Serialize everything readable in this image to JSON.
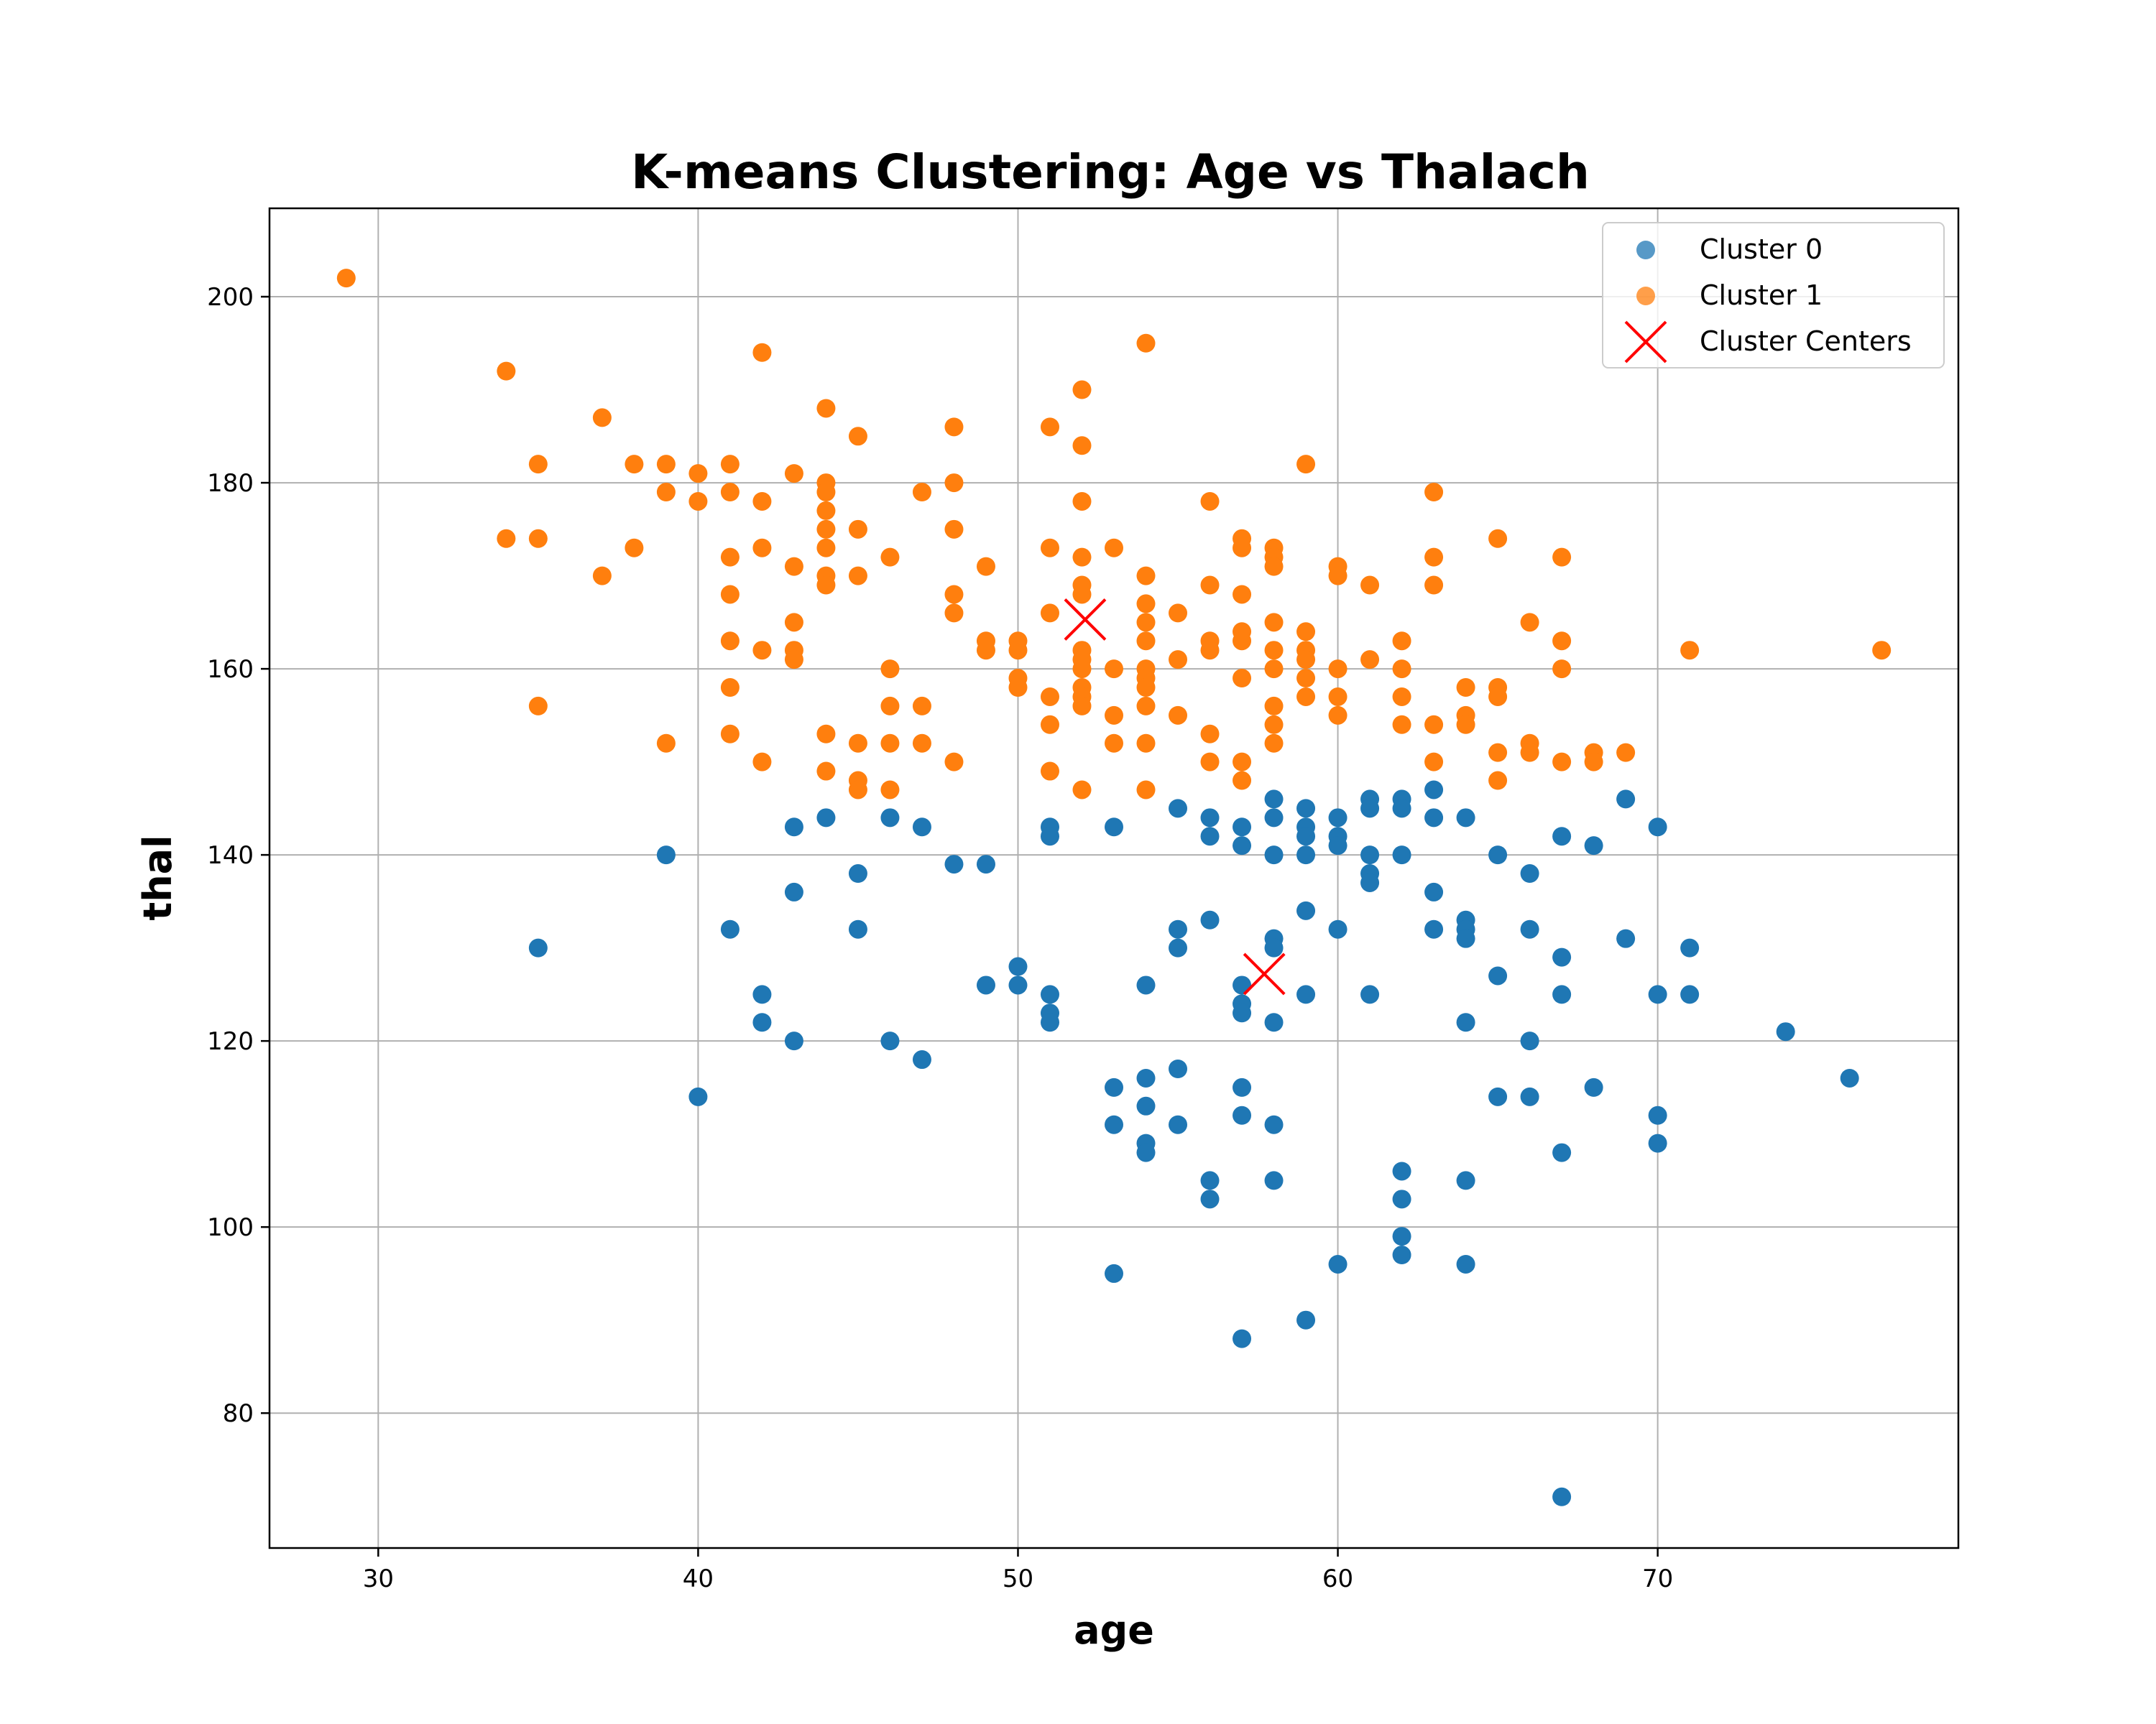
{
  "chart_data": {
    "type": "scatter",
    "title": "K-means Clustering: Age vs Thalach",
    "xlabel": "age",
    "ylabel": "thal",
    "xlim": [
      26.6,
      79.4
    ],
    "ylim": [
      65.5,
      209.5
    ],
    "xticks": [
      "30",
      "40",
      "50",
      "60",
      "70"
    ],
    "yticks": [
      "80",
      "100",
      "120",
      "140",
      "160",
      "180",
      "200"
    ],
    "grid": true,
    "legend_position": "top-right",
    "colors": {
      "cluster0": "#1f77b4",
      "cluster1": "#ff7f0e",
      "centers": "#ff0000"
    },
    "series": [
      {
        "name": "Cluster 0",
        "points": [
          [
            35,
            130
          ],
          [
            39,
            140
          ],
          [
            40,
            114
          ],
          [
            41,
            132
          ],
          [
            42,
            125
          ],
          [
            42,
            122
          ],
          [
            43,
            143
          ],
          [
            43,
            136
          ],
          [
            43,
            120
          ],
          [
            44,
            144
          ],
          [
            45,
            138
          ],
          [
            45,
            132
          ],
          [
            46,
            144
          ],
          [
            46,
            120
          ],
          [
            47,
            143
          ],
          [
            47,
            118
          ],
          [
            48,
            139
          ],
          [
            49,
            139
          ],
          [
            49,
            126
          ],
          [
            50,
            128
          ],
          [
            50,
            126
          ],
          [
            51,
            143
          ],
          [
            51,
            142
          ],
          [
            51,
            125
          ],
          [
            51,
            123
          ],
          [
            51,
            122
          ],
          [
            53,
            143
          ],
          [
            53,
            115
          ],
          [
            53,
            111
          ],
          [
            53,
            95
          ],
          [
            54,
            126
          ],
          [
            54,
            116
          ],
          [
            54,
            113
          ],
          [
            54,
            109
          ],
          [
            54,
            108
          ],
          [
            55,
            145
          ],
          [
            55,
            132
          ],
          [
            55,
            130
          ],
          [
            55,
            117
          ],
          [
            55,
            111
          ],
          [
            56,
            144
          ],
          [
            56,
            142
          ],
          [
            56,
            133
          ],
          [
            56,
            105
          ],
          [
            56,
            103
          ],
          [
            57,
            143
          ],
          [
            57,
            141
          ],
          [
            57,
            126
          ],
          [
            57,
            124
          ],
          [
            57,
            123
          ],
          [
            57,
            115
          ],
          [
            57,
            112
          ],
          [
            57,
            88
          ],
          [
            58,
            146
          ],
          [
            58,
            144
          ],
          [
            58,
            140
          ],
          [
            58,
            131
          ],
          [
            58,
            130
          ],
          [
            58,
            122
          ],
          [
            58,
            111
          ],
          [
            58,
            105
          ],
          [
            59,
            145
          ],
          [
            59,
            143
          ],
          [
            59,
            142
          ],
          [
            59,
            140
          ],
          [
            59,
            134
          ],
          [
            59,
            125
          ],
          [
            59,
            90
          ],
          [
            60,
            144
          ],
          [
            60,
            142
          ],
          [
            60,
            141
          ],
          [
            60,
            132
          ],
          [
            60,
            96
          ],
          [
            61,
            146
          ],
          [
            61,
            145
          ],
          [
            61,
            140
          ],
          [
            61,
            138
          ],
          [
            61,
            137
          ],
          [
            61,
            125
          ],
          [
            62,
            146
          ],
          [
            62,
            145
          ],
          [
            62,
            140
          ],
          [
            62,
            106
          ],
          [
            62,
            103
          ],
          [
            62,
            99
          ],
          [
            62,
            97
          ],
          [
            63,
            147
          ],
          [
            63,
            144
          ],
          [
            63,
            136
          ],
          [
            63,
            132
          ],
          [
            64,
            144
          ],
          [
            64,
            133
          ],
          [
            64,
            132
          ],
          [
            64,
            131
          ],
          [
            64,
            122
          ],
          [
            64,
            105
          ],
          [
            64,
            96
          ],
          [
            65,
            140
          ],
          [
            65,
            127
          ],
          [
            65,
            114
          ],
          [
            66,
            138
          ],
          [
            66,
            132
          ],
          [
            66,
            120
          ],
          [
            66,
            114
          ],
          [
            67,
            142
          ],
          [
            67,
            129
          ],
          [
            67,
            125
          ],
          [
            67,
            108
          ],
          [
            67,
            71
          ],
          [
            68,
            141
          ],
          [
            68,
            115
          ],
          [
            69,
            146
          ],
          [
            69,
            131
          ],
          [
            70,
            143
          ],
          [
            70,
            125
          ],
          [
            70,
            112
          ],
          [
            70,
            109
          ],
          [
            71,
            130
          ],
          [
            71,
            125
          ],
          [
            74,
            121
          ],
          [
            76,
            116
          ]
        ]
      },
      {
        "name": "Cluster 1",
        "points": [
          [
            29,
            202
          ],
          [
            34,
            192
          ],
          [
            34,
            174
          ],
          [
            35,
            182
          ],
          [
            35,
            174
          ],
          [
            35,
            156
          ],
          [
            37,
            187
          ],
          [
            37,
            170
          ],
          [
            38,
            182
          ],
          [
            38,
            173
          ],
          [
            39,
            182
          ],
          [
            39,
            179
          ],
          [
            39,
            152
          ],
          [
            40,
            181
          ],
          [
            40,
            178
          ],
          [
            41,
            182
          ],
          [
            41,
            179
          ],
          [
            41,
            172
          ],
          [
            41,
            168
          ],
          [
            41,
            163
          ],
          [
            41,
            158
          ],
          [
            41,
            153
          ],
          [
            42,
            194
          ],
          [
            42,
            178
          ],
          [
            42,
            173
          ],
          [
            42,
            162
          ],
          [
            42,
            150
          ],
          [
            43,
            181
          ],
          [
            43,
            171
          ],
          [
            43,
            165
          ],
          [
            43,
            162
          ],
          [
            43,
            161
          ],
          [
            44,
            188
          ],
          [
            44,
            180
          ],
          [
            44,
            179
          ],
          [
            44,
            177
          ],
          [
            44,
            175
          ],
          [
            44,
            173
          ],
          [
            44,
            170
          ],
          [
            44,
            169
          ],
          [
            44,
            153
          ],
          [
            44,
            149
          ],
          [
            45,
            185
          ],
          [
            45,
            175
          ],
          [
            45,
            170
          ],
          [
            45,
            152
          ],
          [
            45,
            148
          ],
          [
            45,
            147
          ],
          [
            46,
            172
          ],
          [
            46,
            160
          ],
          [
            46,
            156
          ],
          [
            46,
            152
          ],
          [
            46,
            147
          ],
          [
            47,
            179
          ],
          [
            47,
            156
          ],
          [
            47,
            152
          ],
          [
            48,
            186
          ],
          [
            48,
            180
          ],
          [
            48,
            175
          ],
          [
            48,
            168
          ],
          [
            48,
            166
          ],
          [
            48,
            150
          ],
          [
            49,
            171
          ],
          [
            49,
            163
          ],
          [
            49,
            162
          ],
          [
            50,
            163
          ],
          [
            50,
            162
          ],
          [
            50,
            159
          ],
          [
            50,
            158
          ],
          [
            51,
            186
          ],
          [
            51,
            173
          ],
          [
            51,
            166
          ],
          [
            51,
            157
          ],
          [
            51,
            154
          ],
          [
            51,
            149
          ],
          [
            52,
            190
          ],
          [
            52,
            184
          ],
          [
            52,
            178
          ],
          [
            52,
            172
          ],
          [
            52,
            169
          ],
          [
            52,
            168
          ],
          [
            52,
            162
          ],
          [
            52,
            161
          ],
          [
            52,
            160
          ],
          [
            52,
            158
          ],
          [
            52,
            157
          ],
          [
            52,
            156
          ],
          [
            52,
            147
          ],
          [
            53,
            173
          ],
          [
            53,
            160
          ],
          [
            53,
            155
          ],
          [
            53,
            152
          ],
          [
            54,
            195
          ],
          [
            54,
            170
          ],
          [
            54,
            167
          ],
          [
            54,
            165
          ],
          [
            54,
            163
          ],
          [
            54,
            160
          ],
          [
            54,
            159
          ],
          [
            54,
            158
          ],
          [
            54,
            156
          ],
          [
            54,
            152
          ],
          [
            54,
            147
          ],
          [
            55,
            166
          ],
          [
            55,
            161
          ],
          [
            55,
            155
          ],
          [
            56,
            178
          ],
          [
            56,
            169
          ],
          [
            56,
            163
          ],
          [
            56,
            162
          ],
          [
            56,
            153
          ],
          [
            56,
            150
          ],
          [
            57,
            174
          ],
          [
            57,
            173
          ],
          [
            57,
            168
          ],
          [
            57,
            164
          ],
          [
            57,
            163
          ],
          [
            57,
            159
          ],
          [
            57,
            150
          ],
          [
            57,
            148
          ],
          [
            58,
            173
          ],
          [
            58,
            172
          ],
          [
            58,
            171
          ],
          [
            58,
            165
          ],
          [
            58,
            162
          ],
          [
            58,
            160
          ],
          [
            58,
            156
          ],
          [
            58,
            154
          ],
          [
            58,
            152
          ],
          [
            59,
            182
          ],
          [
            59,
            164
          ],
          [
            59,
            162
          ],
          [
            59,
            161
          ],
          [
            59,
            159
          ],
          [
            59,
            157
          ],
          [
            60,
            171
          ],
          [
            60,
            170
          ],
          [
            60,
            160
          ],
          [
            60,
            157
          ],
          [
            60,
            155
          ],
          [
            61,
            169
          ],
          [
            61,
            161
          ],
          [
            62,
            163
          ],
          [
            62,
            160
          ],
          [
            62,
            157
          ],
          [
            62,
            154
          ],
          [
            63,
            179
          ],
          [
            63,
            172
          ],
          [
            63,
            169
          ],
          [
            63,
            154
          ],
          [
            63,
            150
          ],
          [
            64,
            158
          ],
          [
            64,
            155
          ],
          [
            64,
            154
          ],
          [
            65,
            174
          ],
          [
            65,
            158
          ],
          [
            65,
            157
          ],
          [
            65,
            151
          ],
          [
            65,
            148
          ],
          [
            66,
            165
          ],
          [
            66,
            152
          ],
          [
            66,
            151
          ],
          [
            67,
            172
          ],
          [
            67,
            163
          ],
          [
            67,
            160
          ],
          [
            67,
            150
          ],
          [
            68,
            151
          ],
          [
            68,
            150
          ],
          [
            69,
            151
          ],
          [
            71,
            162
          ],
          [
            77,
            162
          ]
        ]
      },
      {
        "name": "Cluster Centers",
        "points": [
          [
            52.1,
            165.3
          ],
          [
            57.7,
            127.2
          ]
        ]
      }
    ]
  }
}
